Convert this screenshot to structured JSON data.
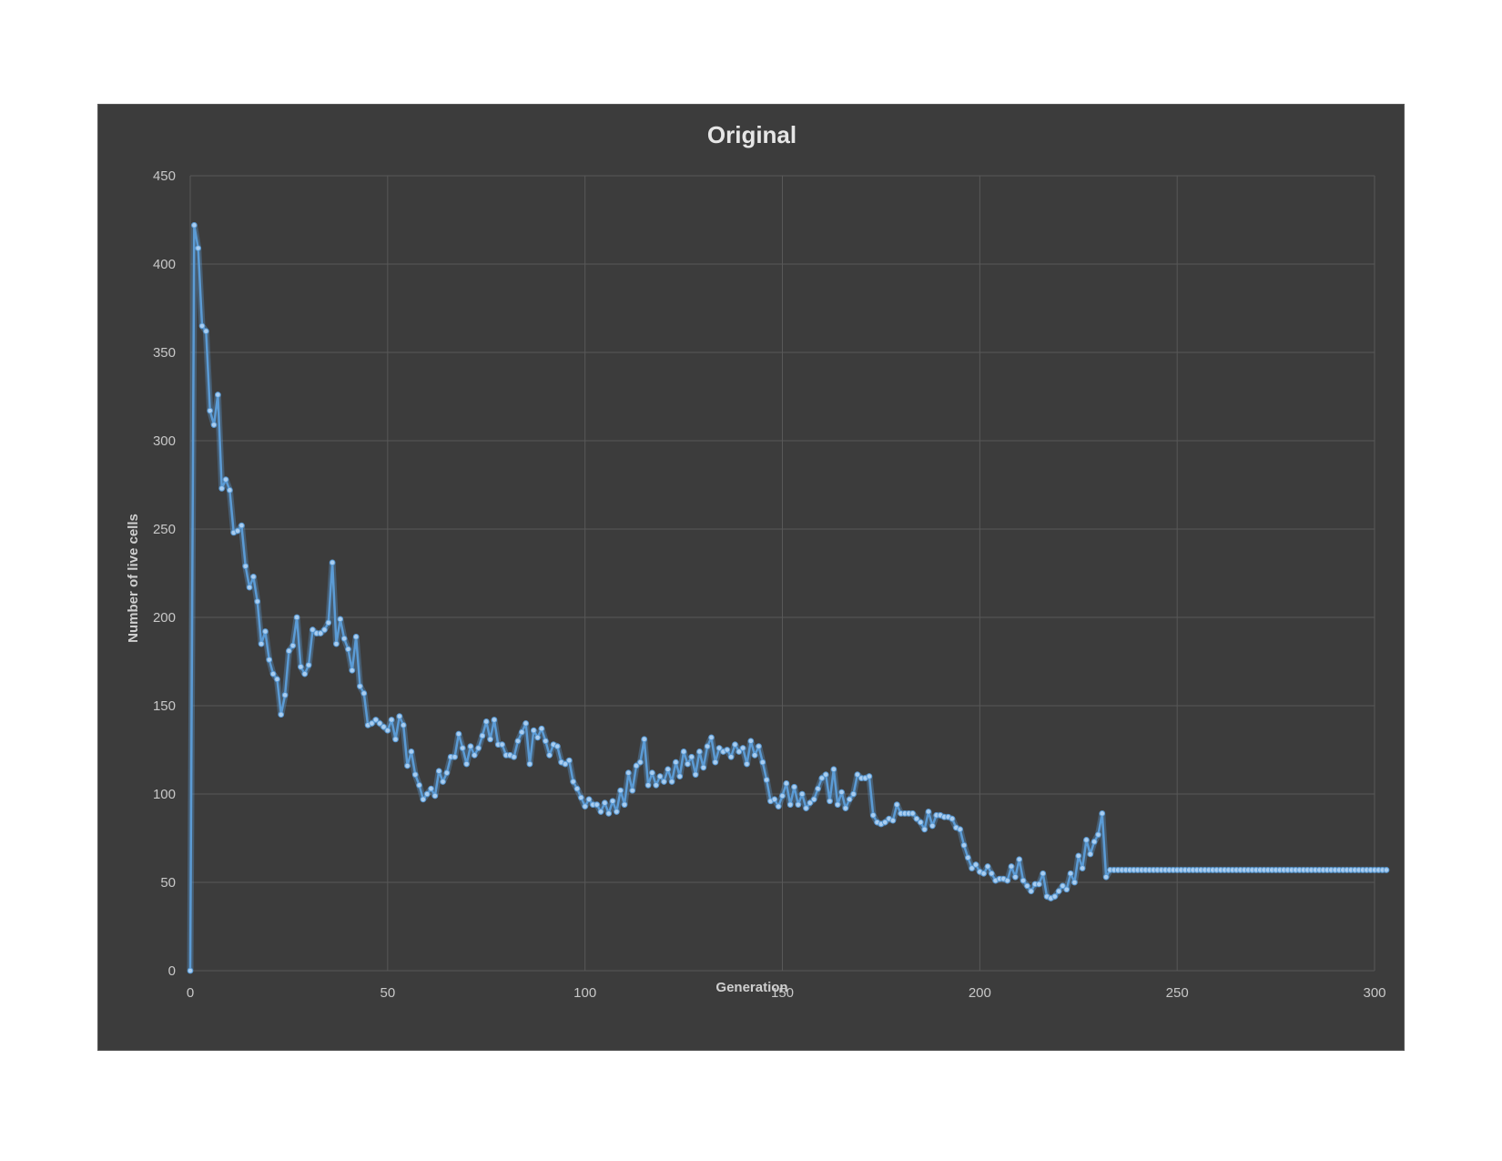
{
  "chart_data": {
    "type": "line",
    "title": "Original",
    "xlabel": "Generation",
    "ylabel": "Number of live cells",
    "xlim": [
      0,
      300
    ],
    "ylim": [
      0,
      450
    ],
    "xticks": [
      0,
      50,
      100,
      150,
      200,
      250,
      300
    ],
    "yticks": [
      0,
      50,
      100,
      150,
      200,
      250,
      300,
      350,
      400,
      450
    ],
    "grid": true,
    "series": [
      {
        "name": "Live cells",
        "color": "#5b9bd5",
        "x_start": 0,
        "x_step": 1,
        "values": [
          0,
          422,
          409,
          365,
          362,
          317,
          309,
          326,
          273,
          278,
          272,
          248,
          249,
          252,
          229,
          217,
          223,
          209,
          185,
          192,
          176,
          168,
          165,
          145,
          156,
          181,
          184,
          200,
          172,
          168,
          173,
          193,
          191,
          191,
          193,
          197,
          231,
          185,
          199,
          188,
          182,
          170,
          189,
          161,
          157,
          139,
          140,
          142,
          140,
          138,
          136,
          142,
          131,
          144,
          139,
          116,
          124,
          111,
          105,
          97,
          100,
          103,
          99,
          113,
          107,
          112,
          121,
          121,
          134,
          126,
          117,
          127,
          122,
          126,
          133,
          141,
          131,
          142,
          128,
          128,
          122,
          122,
          121,
          130,
          135,
          140,
          117,
          136,
          132,
          137,
          130,
          122,
          128,
          127,
          118,
          117,
          119,
          107,
          103,
          98,
          93,
          97,
          94,
          94,
          90,
          95,
          89,
          96,
          90,
          102,
          94,
          112,
          102,
          116,
          118,
          131,
          105,
          112,
          105,
          110,
          107,
          114,
          107,
          118,
          110,
          124,
          117,
          121,
          111,
          124,
          115,
          127,
          132,
          118,
          126,
          124,
          125,
          121,
          128,
          124,
          126,
          117,
          130,
          122,
          127,
          118,
          108,
          96,
          97,
          93,
          99,
          106,
          94,
          104,
          94,
          100,
          92,
          95,
          97,
          103,
          109,
          111,
          96,
          114,
          94,
          101,
          92,
          97,
          100,
          111,
          109,
          109,
          110,
          88,
          84,
          83,
          84,
          86,
          85,
          94,
          89,
          89,
          89,
          89,
          86,
          84,
          80,
          90,
          82,
          88,
          88,
          87,
          87,
          86,
          81,
          80,
          71,
          64,
          58,
          60,
          56,
          55,
          59,
          55,
          51,
          52,
          52,
          51,
          59,
          53,
          63,
          51,
          48,
          45,
          49,
          49,
          55,
          42,
          41,
          42,
          45,
          48,
          46,
          55,
          50,
          65,
          58,
          74,
          66,
          73,
          77,
          89,
          53,
          57,
          57,
          57,
          57,
          57,
          57,
          57,
          57,
          57,
          57,
          57,
          57,
          57,
          57,
          57,
          57,
          57,
          57,
          57,
          57,
          57,
          57,
          57,
          57,
          57,
          57,
          57,
          57,
          57,
          57,
          57,
          57,
          57,
          57,
          57,
          57,
          57,
          57,
          57,
          57,
          57,
          57,
          57,
          57,
          57,
          57,
          57,
          57,
          57,
          57,
          57,
          57,
          57,
          57,
          57,
          57,
          57,
          57,
          57,
          57,
          57,
          57,
          57,
          57,
          57,
          57,
          57,
          57,
          57,
          57,
          57
        ]
      }
    ]
  }
}
